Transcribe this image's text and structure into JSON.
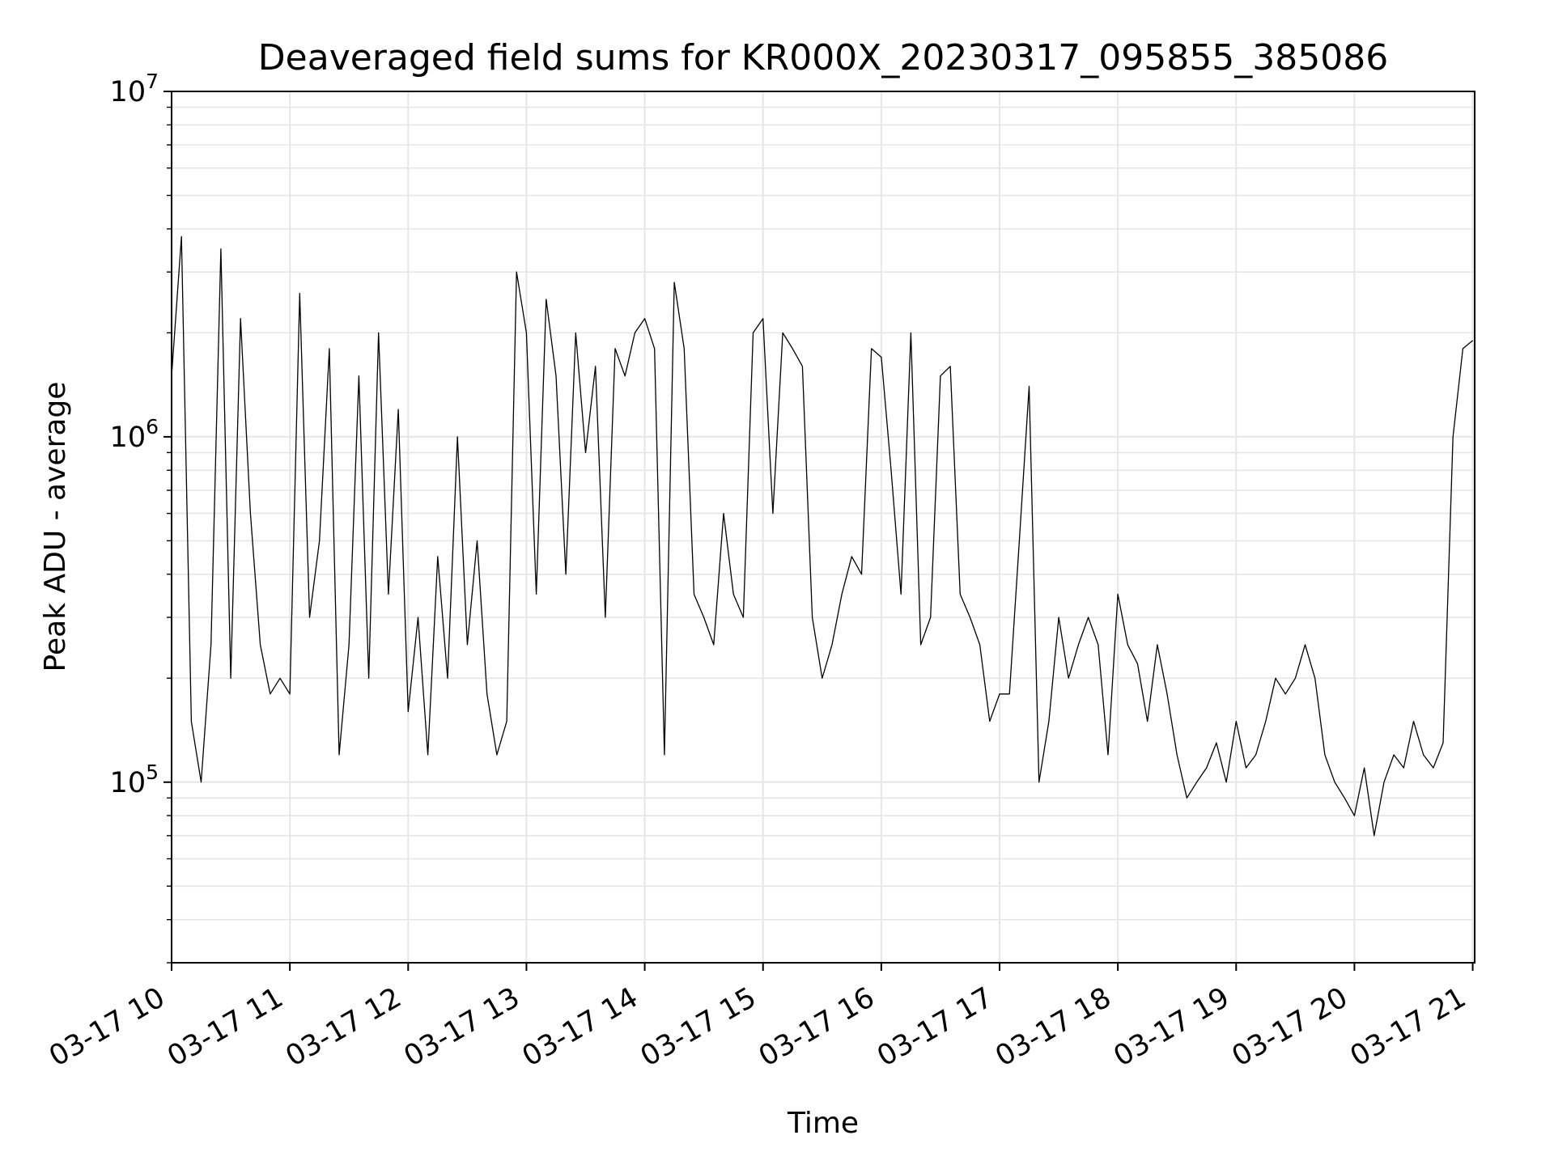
{
  "chart_data": {
    "type": "line",
    "title": "Deaveraged field sums for KR000X_20230317_095855_385086",
    "xlabel": "Time",
    "ylabel": "Peak ADU - average",
    "y_scale": "log",
    "ylim": [
      30000,
      10000000
    ],
    "xlim": [
      "2023-03-17 10:00",
      "2023-03-17 21:01"
    ],
    "x_tick_labels": [
      "03-17 10",
      "03-17 11",
      "03-17 12",
      "03-17 13",
      "03-17 14",
      "03-17 15",
      "03-17 16",
      "03-17 17",
      "03-17 18",
      "03-17 19",
      "03-17 20",
      "03-17 21"
    ],
    "y_tick_labels": [
      {
        "value": 100000,
        "base": "10",
        "exp": "5"
      },
      {
        "value": 1000000,
        "base": "10",
        "exp": "6"
      },
      {
        "value": 10000000,
        "base": "10",
        "exp": "7"
      }
    ],
    "grid": true,
    "line_color": "#000000",
    "grid_color": "#e6e6e6",
    "series": [
      {
        "x": [
          "2023-03-17 10:00",
          "2023-03-17 10:05",
          "2023-03-17 10:10",
          "2023-03-17 10:15",
          "2023-03-17 10:20",
          "2023-03-17 10:25",
          "2023-03-17 10:30",
          "2023-03-17 10:35",
          "2023-03-17 10:40",
          "2023-03-17 10:45",
          "2023-03-17 10:50",
          "2023-03-17 10:55",
          "2023-03-17 11:00",
          "2023-03-17 11:05",
          "2023-03-17 11:10",
          "2023-03-17 11:15",
          "2023-03-17 11:20",
          "2023-03-17 11:25",
          "2023-03-17 11:30",
          "2023-03-17 11:35",
          "2023-03-17 11:40",
          "2023-03-17 11:45",
          "2023-03-17 11:50",
          "2023-03-17 11:55",
          "2023-03-17 12:00",
          "2023-03-17 12:05",
          "2023-03-17 12:10",
          "2023-03-17 12:15",
          "2023-03-17 12:20",
          "2023-03-17 12:25",
          "2023-03-17 12:30",
          "2023-03-17 12:35",
          "2023-03-17 12:40",
          "2023-03-17 12:45",
          "2023-03-17 12:50",
          "2023-03-17 12:55",
          "2023-03-17 13:00",
          "2023-03-17 13:05",
          "2023-03-17 13:10",
          "2023-03-17 13:15",
          "2023-03-17 13:20",
          "2023-03-17 13:25",
          "2023-03-17 13:30",
          "2023-03-17 13:35",
          "2023-03-17 13:40",
          "2023-03-17 13:45",
          "2023-03-17 13:50",
          "2023-03-17 13:55",
          "2023-03-17 14:00",
          "2023-03-17 14:05",
          "2023-03-17 14:10",
          "2023-03-17 14:15",
          "2023-03-17 14:20",
          "2023-03-17 14:25",
          "2023-03-17 14:30",
          "2023-03-17 14:35",
          "2023-03-17 14:40",
          "2023-03-17 14:45",
          "2023-03-17 14:50",
          "2023-03-17 14:55",
          "2023-03-17 15:00",
          "2023-03-17 15:05",
          "2023-03-17 15:10",
          "2023-03-17 15:15",
          "2023-03-17 15:20",
          "2023-03-17 15:25",
          "2023-03-17 15:30",
          "2023-03-17 15:35",
          "2023-03-17 15:40",
          "2023-03-17 15:45",
          "2023-03-17 15:50",
          "2023-03-17 15:55",
          "2023-03-17 16:00",
          "2023-03-17 16:05",
          "2023-03-17 16:10",
          "2023-03-17 16:15",
          "2023-03-17 16:20",
          "2023-03-17 16:25",
          "2023-03-17 16:30",
          "2023-03-17 16:35",
          "2023-03-17 16:40",
          "2023-03-17 16:45",
          "2023-03-17 16:50",
          "2023-03-17 16:55",
          "2023-03-17 17:00",
          "2023-03-17 17:05",
          "2023-03-17 17:10",
          "2023-03-17 17:15",
          "2023-03-17 17:20",
          "2023-03-17 17:25",
          "2023-03-17 17:30",
          "2023-03-17 17:35",
          "2023-03-17 17:40",
          "2023-03-17 17:45",
          "2023-03-17 17:50",
          "2023-03-17 17:55",
          "2023-03-17 18:00",
          "2023-03-17 18:05",
          "2023-03-17 18:10",
          "2023-03-17 18:15",
          "2023-03-17 18:20",
          "2023-03-17 18:25",
          "2023-03-17 18:30",
          "2023-03-17 18:35",
          "2023-03-17 18:40",
          "2023-03-17 18:45",
          "2023-03-17 18:50",
          "2023-03-17 18:55",
          "2023-03-17 19:00",
          "2023-03-17 19:05",
          "2023-03-17 19:10",
          "2023-03-17 19:15",
          "2023-03-17 19:20",
          "2023-03-17 19:25",
          "2023-03-17 19:30",
          "2023-03-17 19:35",
          "2023-03-17 19:40",
          "2023-03-17 19:45",
          "2023-03-17 19:50",
          "2023-03-17 19:55",
          "2023-03-17 20:00",
          "2023-03-17 20:05",
          "2023-03-17 20:10",
          "2023-03-17 20:15",
          "2023-03-17 20:20",
          "2023-03-17 20:25",
          "2023-03-17 20:30",
          "2023-03-17 20:35",
          "2023-03-17 20:40",
          "2023-03-17 20:45",
          "2023-03-17 20:50",
          "2023-03-17 20:55",
          "2023-03-17 21:00"
        ],
        "y": [
          1500000,
          3800000,
          150000,
          100000,
          250000,
          3500000,
          200000,
          2200000,
          600000,
          250000,
          180000,
          200000,
          180000,
          2600000,
          300000,
          500000,
          1800000,
          120000,
          250000,
          1500000,
          200000,
          2000000,
          350000,
          1200000,
          160000,
          300000,
          120000,
          450000,
          200000,
          1000000,
          250000,
          500000,
          180000,
          120000,
          150000,
          3000000,
          2000000,
          350000,
          2500000,
          1500000,
          400000,
          2000000,
          900000,
          1600000,
          300000,
          1800000,
          1500000,
          2000000,
          2200000,
          1800000,
          120000,
          2800000,
          1800000,
          350000,
          300000,
          250000,
          600000,
          350000,
          300000,
          2000000,
          2200000,
          600000,
          2000000,
          1800000,
          1600000,
          300000,
          200000,
          250000,
          350000,
          450000,
          400000,
          1800000,
          1700000,
          800000,
          350000,
          2000000,
          250000,
          300000,
          1500000,
          1600000,
          350000,
          300000,
          250000,
          150000,
          180000,
          180000,
          500000,
          1400000,
          100000,
          150000,
          300000,
          200000,
          250000,
          300000,
          250000,
          120000,
          350000,
          250000,
          220000,
          150000,
          250000,
          180000,
          120000,
          90000,
          100000,
          110000,
          130000,
          100000,
          150000,
          110000,
          120000,
          150000,
          200000,
          180000,
          200000,
          250000,
          200000,
          120000,
          100000,
          90000,
          80000,
          110000,
          70000,
          100000,
          120000,
          110000,
          150000,
          120000,
          110000,
          130000,
          1000000,
          1800000,
          1900000
        ]
      }
    ]
  }
}
